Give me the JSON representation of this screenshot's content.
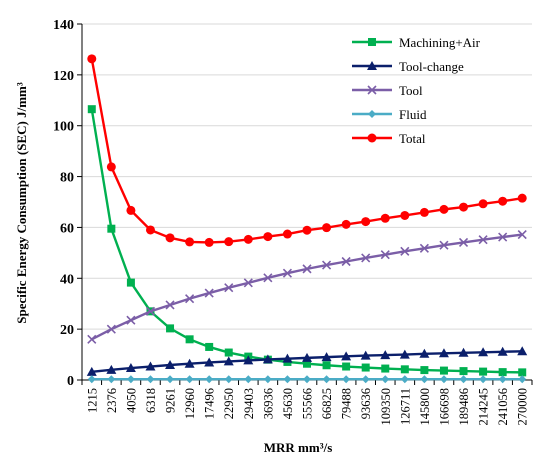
{
  "chart_data": {
    "type": "line",
    "title": "",
    "xlabel": "MRR mm³/s",
    "ylabel": "Specific Energy Consumption (SEC)  J/mm³",
    "ylim": [
      0,
      140
    ],
    "yticks": [
      0,
      20,
      40,
      60,
      80,
      100,
      120,
      140
    ],
    "grid": "horizontal",
    "legend": "top-right",
    "categories": [
      "1215",
      "2376",
      "4050",
      "6318",
      "9261",
      "12960",
      "17496",
      "22950",
      "29403",
      "36936",
      "45630",
      "55566",
      "66825",
      "79488",
      "93636",
      "109350",
      "126711",
      "145800",
      "166698",
      "189486",
      "214245",
      "241056",
      "270000"
    ],
    "series": [
      {
        "name": "Machining+Air",
        "color": "#00b050",
        "marker": "square",
        "values": [
          106.5,
          59.5,
          38.3,
          27.0,
          20.3,
          16.0,
          13.0,
          10.8,
          9.2,
          8.0,
          7.1,
          6.4,
          5.8,
          5.3,
          4.9,
          4.5,
          4.2,
          3.9,
          3.7,
          3.5,
          3.3,
          3.1,
          3.0
        ]
      },
      {
        "name": "Tool-change",
        "color": "#0b1f6b",
        "marker": "triangle",
        "values": [
          3.2,
          4.0,
          4.7,
          5.3,
          5.9,
          6.4,
          6.9,
          7.3,
          7.7,
          8.1,
          8.4,
          8.7,
          9.0,
          9.3,
          9.6,
          9.8,
          10.0,
          10.3,
          10.5,
          10.7,
          10.9,
          11.1,
          11.3
        ]
      },
      {
        "name": "Tool",
        "color": "#7b5ea7",
        "marker": "x",
        "values": [
          16.0,
          20.0,
          23.5,
          27.0,
          29.5,
          32.0,
          34.2,
          36.3,
          38.2,
          40.2,
          42.0,
          43.7,
          45.2,
          46.6,
          48.0,
          49.3,
          50.6,
          51.8,
          53.0,
          54.1,
          55.2,
          56.2,
          57.2
        ]
      },
      {
        "name": "Fluid",
        "color": "#4bacc6",
        "marker": "diamond",
        "values": [
          0.3,
          0.3,
          0.3,
          0.3,
          0.3,
          0.3,
          0.3,
          0.3,
          0.3,
          0.3,
          0.3,
          0.3,
          0.3,
          0.3,
          0.3,
          0.3,
          0.3,
          0.3,
          0.3,
          0.3,
          0.3,
          0.3,
          0.3
        ]
      },
      {
        "name": "Total",
        "color": "#ff0000",
        "marker": "circle",
        "values": [
          126.3,
          83.8,
          66.7,
          59.0,
          55.9,
          54.3,
          54.1,
          54.4,
          55.3,
          56.4,
          57.4,
          58.9,
          59.9,
          61.2,
          62.3,
          63.6,
          64.7,
          65.9,
          67.1,
          68.0,
          69.3,
          70.3,
          71.5
        ]
      }
    ]
  }
}
